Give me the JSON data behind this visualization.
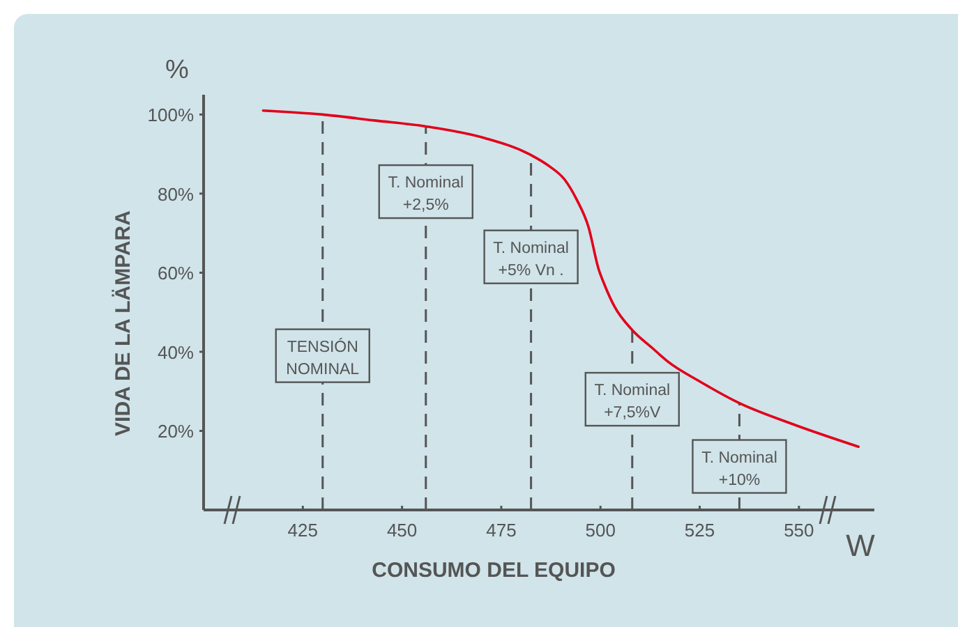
{
  "chart_data": {
    "type": "line",
    "xlabel": "CONSUMO DEL EQUIPO",
    "ylabel": "VIDA DE LA LÄMPARA",
    "x": [
      415,
      430,
      443,
      456,
      471,
      482,
      487,
      491,
      494,
      497,
      499.5,
      501,
      503.5,
      508,
      513,
      517,
      525,
      535,
      549,
      565
    ],
    "series": [
      {
        "color": "#e2001a",
        "values": [
          101,
          100,
          98.5,
          97,
          94,
          90,
          87,
          83.5,
          78.5,
          71.5,
          61,
          57,
          51.5,
          45.5,
          41,
          37.5,
          32.5,
          27,
          21.5,
          16
        ]
      }
    ],
    "xlim": [
      400,
      569
    ],
    "ylim": [
      0,
      105
    ],
    "xticks": [
      425,
      450,
      475,
      500,
      525,
      550
    ],
    "yticks": [
      {
        "value": 20,
        "label": "20%"
      },
      {
        "value": 40,
        "label": "40%"
      },
      {
        "value": 60,
        "label": "60%"
      },
      {
        "value": 80,
        "label": "80%"
      },
      {
        "value": 100,
        "label": "100%"
      }
    ],
    "grid": false,
    "marker": "none",
    "line_style": "solid",
    "ref_lines": [
      {
        "axis": "x",
        "value": 430,
        "color": "#555555",
        "line_style": "dashed"
      },
      {
        "axis": "x",
        "value": 456,
        "color": "#555555",
        "line_style": "dashed"
      },
      {
        "axis": "x",
        "value": 482.5,
        "color": "#555555",
        "line_style": "dashed"
      },
      {
        "axis": "x",
        "value": 508,
        "color": "#555555",
        "line_style": "dashed"
      },
      {
        "axis": "x",
        "value": 535,
        "color": "#555555",
        "line_style": "dashed"
      }
    ],
    "annotations": [
      "%",
      "W",
      {
        "text": "TENSIÓN\nNOMINAL",
        "x": 430,
        "y": 39
      },
      {
        "text": "T. Nominal\n+2,5%",
        "x": 456,
        "y": 80.5
      },
      {
        "text": "T. Nominal\n+5% Vn .",
        "x": 482.5,
        "y": 64
      },
      {
        "text": "T. Nominal\n+7,5%V",
        "x": 508,
        "y": 28
      },
      {
        "text": "T. Nominal\n+10%",
        "x": 535,
        "y": 11
      }
    ]
  }
}
